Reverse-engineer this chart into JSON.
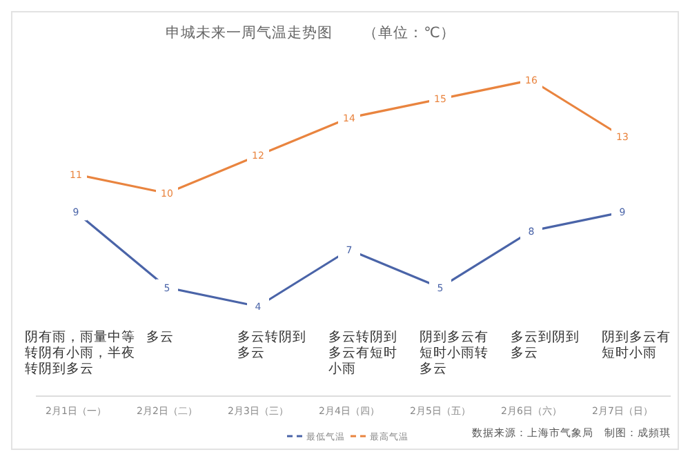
{
  "chart_data": {
    "type": "line",
    "title": "申城未来一周气温走势图　　（单位：℃）",
    "categories": [
      "2月1日（一）",
      "2月2日（二）",
      "2月3日（三）",
      "2月4日（四）",
      "2月5日（五）",
      "2月6日（六）",
      "2月7日（日）"
    ],
    "series": [
      {
        "name": "最低气温",
        "color": "#4a64a8",
        "values": [
          9,
          5,
          4,
          7,
          5,
          8,
          9
        ]
      },
      {
        "name": "最高气温",
        "color": "#e9843f",
        "values": [
          11,
          10,
          12,
          14,
          15,
          16,
          13
        ]
      }
    ],
    "data_labels": true,
    "legend": "bottom",
    "line_style": "solid",
    "grid": false,
    "annotations": [
      "阴有雨，雨量中等转阴有小雨，半夜转阴到多云",
      "多云",
      "多云转阴到多云",
      "多云转阴到多云有短时小雨",
      "阴到多云有短时小雨转多云",
      "多云到阴到多云",
      "阴到多云有短时小雨",
      "数据来源：上海市气象局　制图：成頻琪"
    ]
  }
}
